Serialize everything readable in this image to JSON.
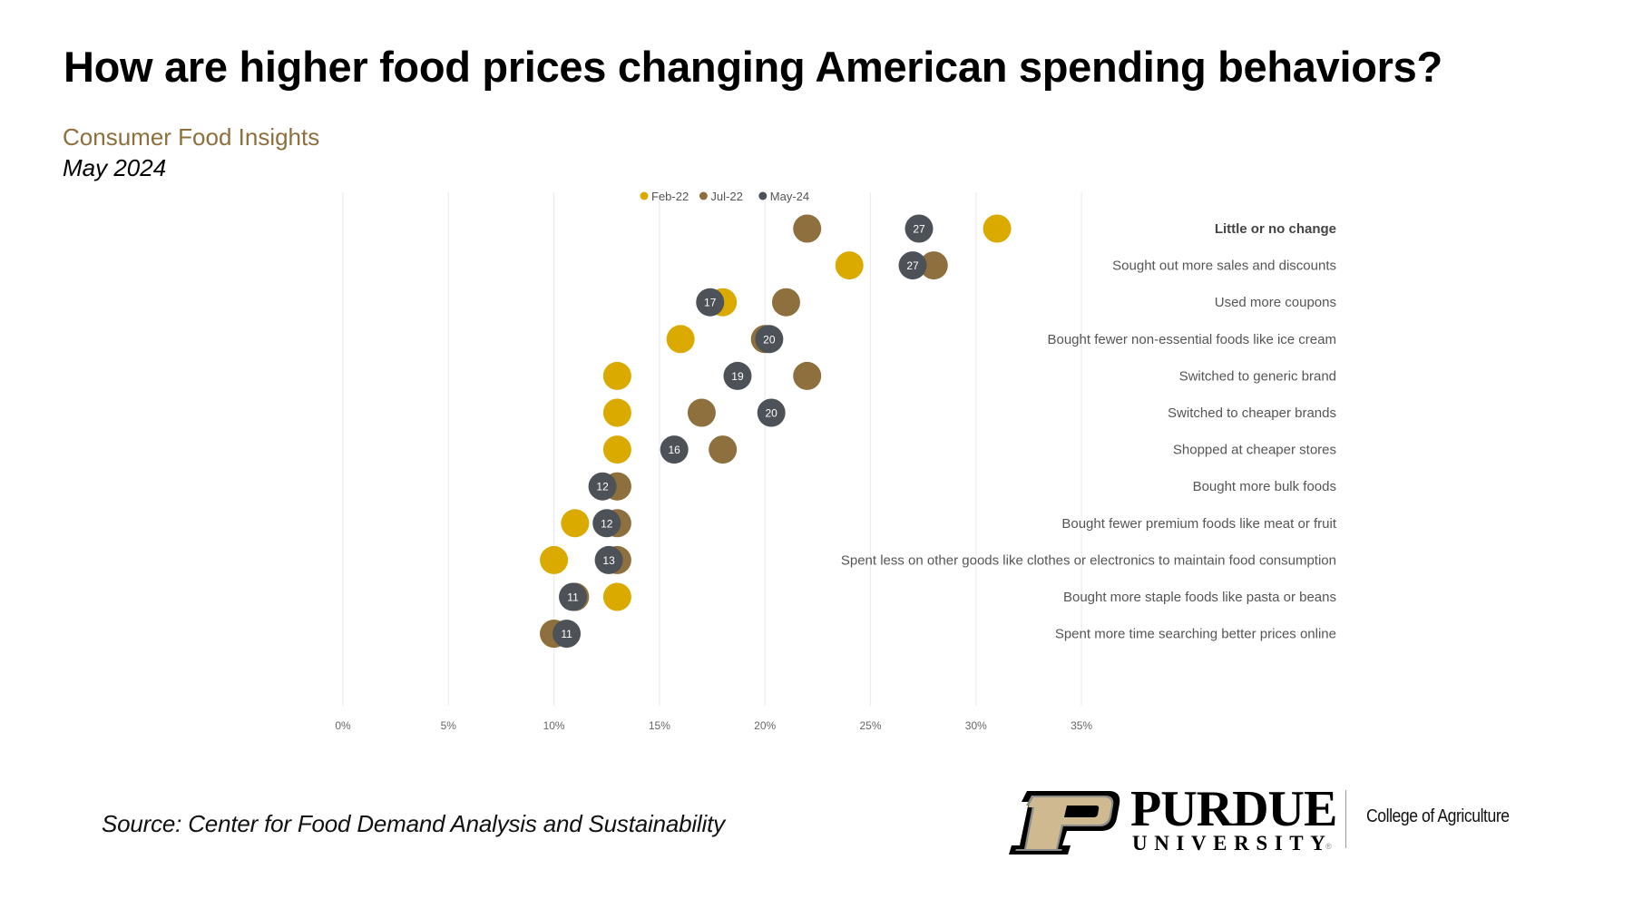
{
  "header": {
    "title": "How are higher food prices changing American spending behaviors?",
    "subtitle": "Consumer Food Insights",
    "date": "May 2024"
  },
  "footer": {
    "source": "Source:  Center for Food Demand Analysis and Sustainability",
    "logo_name": "PURDUE",
    "logo_sub": "UNIVERSITY",
    "logo_reg": "®",
    "college": "College of Agriculture"
  },
  "colors": {
    "feb22": "#DAAA00",
    "jul22": "#8E6F3E",
    "may24": "#4D5158",
    "logo_gold": "#CFB991"
  },
  "chart_data": {
    "type": "scatter",
    "subtype": "dot-plot",
    "title": "How are higher food prices changing American spending behaviors?",
    "xlabel": "",
    "ylabel": "",
    "xlim": [
      0,
      35
    ],
    "x_ticks": [
      0,
      5,
      10,
      15,
      20,
      25,
      30,
      35
    ],
    "x_tick_labels": [
      "0%",
      "5%",
      "10%",
      "15%",
      "20%",
      "25%",
      "30%",
      "35%"
    ],
    "grid": "vertical",
    "legend_position": "top-center",
    "categories": [
      "Little or no change",
      "Sought out more sales and discounts",
      "Used more coupons",
      "Bought fewer non-essential foods like ice cream",
      "Switched to generic brand",
      "Switched to cheaper brands",
      "Shopped at cheaper stores",
      "Bought more bulk foods",
      "Bought fewer premium foods like meat or fruit",
      "Spent less on other goods like clothes or electronics to maintain food consumption",
      "Bought more staple foods like pasta or beans",
      "Spent more time searching better prices online"
    ],
    "bold_categories": [
      "Little or no change"
    ],
    "series": [
      {
        "name": "Feb-22",
        "color_key": "feb22",
        "show_labels": false,
        "values": [
          31,
          24,
          18,
          16,
          13,
          13,
          13,
          13,
          11,
          10,
          13,
          10
        ]
      },
      {
        "name": "Jul-22",
        "color_key": "jul22",
        "show_labels": false,
        "values": [
          22,
          28,
          21,
          20,
          22,
          17,
          18,
          13,
          13,
          13,
          11,
          10
        ]
      },
      {
        "name": "May-24",
        "color_key": "may24",
        "show_labels": true,
        "values": [
          27.3,
          27,
          17.4,
          20.2,
          18.7,
          20.3,
          15.7,
          12.3,
          12.5,
          12.6,
          10.9,
          10.6
        ],
        "data_labels": [
          "27",
          "27",
          "17",
          "20",
          "19",
          "20",
          "16",
          "12",
          "12",
          "13",
          "11",
          "11"
        ]
      }
    ]
  }
}
